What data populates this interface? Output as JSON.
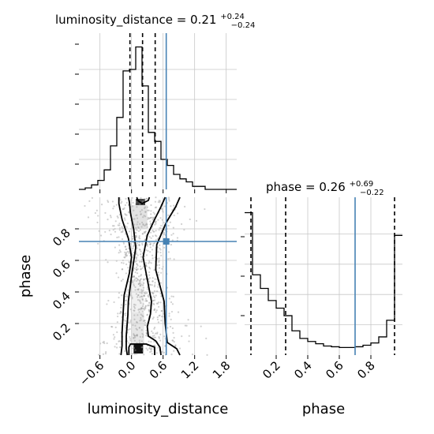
{
  "chart_data": [
    {
      "type": "histogram",
      "panel": "top-left",
      "parameter": "luminosity_distance",
      "title": "luminosity_distance = 0.21",
      "title_main": "luminosity_distance = 0.21",
      "title_sup": "+0.24",
      "title_sub": "−0.24",
      "xlim": [
        -1.0,
        2.0
      ],
      "grid": true,
      "bin_edges": [
        -1.0,
        -0.88,
        -0.76,
        -0.64,
        -0.52,
        -0.4,
        -0.28,
        -0.16,
        -0.04,
        0.08,
        0.2,
        0.32,
        0.44,
        0.56,
        0.68,
        0.8,
        0.92,
        1.04,
        1.16,
        1.28,
        1.4,
        1.52
      ],
      "relative_counts": [
        0.0,
        0.01,
        0.03,
        0.06,
        0.13,
        0.29,
        0.48,
        0.79,
        0.8,
        0.95,
        0.69,
        0.38,
        0.32,
        0.2,
        0.16,
        0.1,
        0.07,
        0.05,
        0.02,
        0.02,
        0.0
      ],
      "quantile_lines": [
        -0.03,
        0.21,
        0.45
      ],
      "truth_line": 0.66
    },
    {
      "type": "histogram",
      "panel": "bottom-right",
      "parameter": "phase",
      "title": "phase = 0.26",
      "title_main": "phase = 0.26",
      "title_sup": "+0.69",
      "title_sub": "−0.22",
      "xlabel": "phase",
      "xlim": [
        0.0,
        1.0
      ],
      "xticks": [
        "0.2",
        "0.4",
        "0.6",
        "0.8"
      ],
      "xtick_values": [
        0.2,
        0.4,
        0.6,
        0.8
      ],
      "grid": true,
      "bin_edges": [
        0.0,
        0.05,
        0.1,
        0.15,
        0.2,
        0.25,
        0.3,
        0.35,
        0.4,
        0.45,
        0.5,
        0.55,
        0.6,
        0.65,
        0.7,
        0.75,
        0.8,
        0.85,
        0.9,
        0.95,
        1.0
      ],
      "relative_counts": [
        0.94,
        0.53,
        0.44,
        0.36,
        0.31,
        0.26,
        0.16,
        0.11,
        0.09,
        0.075,
        0.06,
        0.055,
        0.05,
        0.05,
        0.055,
        0.065,
        0.08,
        0.12,
        0.23,
        0.79
      ],
      "quantile_lines": [
        0.04,
        0.26,
        0.95
      ],
      "truth_line": 0.7
    },
    {
      "type": "scatter",
      "panel": "bottom-left",
      "xlabel": "luminosity_distance",
      "ylabel": "phase",
      "xlim": [
        -1.0,
        2.0
      ],
      "ylim": [
        0.0,
        1.0
      ],
      "xticks": [
        "−0.6",
        "0.0",
        "0.6",
        "1.2",
        "1.8"
      ],
      "xtick_values": [
        -0.6,
        0.0,
        0.6,
        1.2,
        1.8
      ],
      "yticks": [
        "0.2",
        "0.4",
        "0.6",
        "0.8"
      ],
      "ytick_values": [
        0.2,
        0.4,
        0.6,
        0.8
      ],
      "grid": true,
      "truth_point": [
        0.66,
        0.72
      ],
      "contours": [
        {
          "level": "inner",
          "points": [
            [
              -0.05,
              0.0
            ],
            [
              -0.05,
              0.05
            ],
            [
              -0.02,
              0.07
            ],
            [
              0.28,
              0.07
            ],
            [
              0.44,
              0.05
            ],
            [
              0.44,
              0.0
            ]
          ]
        },
        {
          "level": "inner",
          "points": [
            [
              0.1,
              1.0
            ],
            [
              0.12,
              0.98
            ],
            [
              0.2,
              0.96
            ],
            [
              0.32,
              0.98
            ],
            [
              0.34,
              1.0
            ]
          ]
        },
        {
          "level": "outer",
          "points": [
            [
              -0.08,
              0.0
            ],
            [
              -0.1,
              0.04
            ],
            [
              -0.1,
              0.12
            ],
            [
              -0.07,
              0.25
            ],
            [
              -0.06,
              0.34
            ],
            [
              0.0,
              0.5
            ],
            [
              0.08,
              0.68
            ],
            [
              0.04,
              0.8
            ],
            [
              -0.02,
              0.9
            ],
            [
              -0.04,
              0.97
            ],
            [
              -0.06,
              1.0
            ]
          ]
        },
        {
          "level": "outer",
          "points": [
            [
              0.56,
              0.0
            ],
            [
              0.54,
              0.05
            ],
            [
              0.46,
              0.09
            ],
            [
              0.32,
              0.12
            ],
            [
              0.3,
              0.18
            ],
            [
              0.36,
              0.26
            ],
            [
              0.38,
              0.34
            ],
            [
              0.3,
              0.48
            ],
            [
              0.22,
              0.62
            ],
            [
              0.3,
              0.76
            ],
            [
              0.44,
              0.86
            ],
            [
              0.56,
              0.94
            ],
            [
              0.64,
              1.0
            ]
          ]
        },
        {
          "level": "mid",
          "points": [
            [
              -0.2,
              0.0
            ],
            [
              -0.18,
              0.06
            ],
            [
              -0.18,
              0.14
            ],
            [
              -0.16,
              0.26
            ],
            [
              -0.14,
              0.38
            ],
            [
              -0.04,
              0.52
            ],
            [
              0.0,
              0.62
            ],
            [
              -0.06,
              0.74
            ],
            [
              -0.18,
              0.86
            ],
            [
              -0.24,
              0.96
            ],
            [
              -0.24,
              1.0
            ]
          ]
        },
        {
          "level": "mid",
          "points": [
            [
              0.92,
              0.0
            ],
            [
              0.86,
              0.04
            ],
            [
              0.68,
              0.08
            ],
            [
              0.64,
              0.2
            ],
            [
              0.62,
              0.34
            ],
            [
              0.46,
              0.54
            ],
            [
              0.48,
              0.7
            ],
            [
              0.66,
              0.84
            ],
            [
              0.84,
              0.94
            ],
            [
              0.92,
              1.0
            ]
          ]
        }
      ],
      "density_cells": [
        {
          "x": 0.04,
          "y": 0.01,
          "w": 0.18,
          "h": 0.06,
          "shade": "#111111"
        },
        {
          "x": 0.08,
          "y": 0.95,
          "w": 0.18,
          "h": 0.04,
          "shade": "#444444"
        },
        {
          "x": 0.0,
          "y": 0.07,
          "w": 0.24,
          "h": 0.2,
          "shade": "#e6e6e6"
        },
        {
          "x": -0.02,
          "y": 0.27,
          "w": 0.26,
          "h": 0.2,
          "shade": "#f1f1f1"
        },
        {
          "x": 0.0,
          "y": 0.8,
          "w": 0.3,
          "h": 0.15,
          "shade": "#e2e2e2"
        }
      ]
    }
  ],
  "colors": {
    "truth": "#4682b4",
    "hist": "#000000",
    "grid": "#c8c8c8",
    "scatter_points": "#9a9a9a"
  }
}
